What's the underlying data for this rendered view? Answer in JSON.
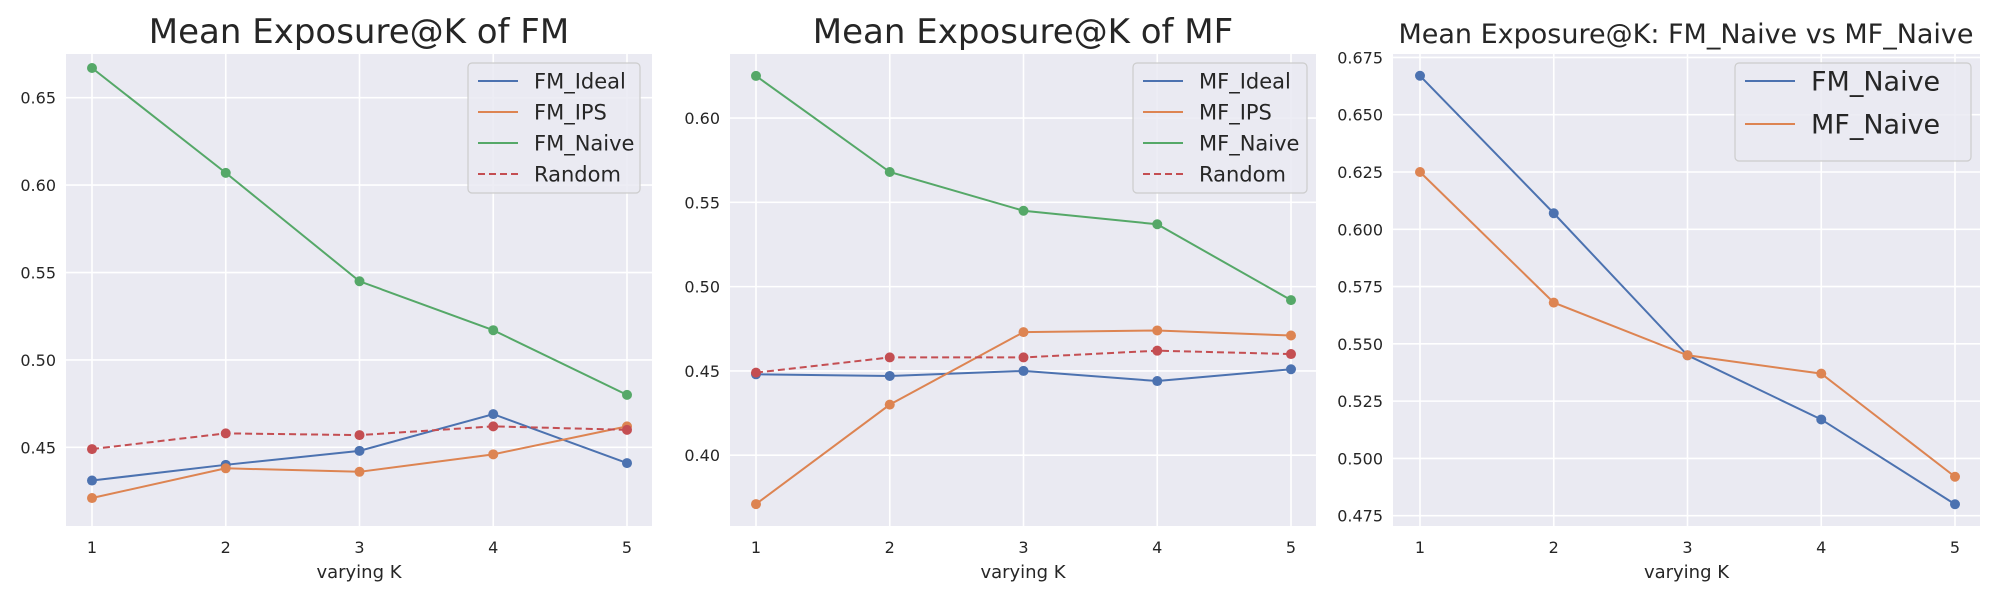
{
  "chart_data": [
    {
      "type": "line",
      "title": "Mean Exposure@K of FM",
      "xlabel": "varying K",
      "ylabel": "",
      "x": [
        1,
        2,
        3,
        4,
        5
      ],
      "xticks": [
        "1",
        "2",
        "3",
        "4",
        "5"
      ],
      "ylim": [
        0.405,
        0.675
      ],
      "yticks": [
        "0.45",
        "0.50",
        "0.55",
        "0.60",
        "0.65"
      ],
      "ytick_values": [
        0.45,
        0.5,
        0.55,
        0.6,
        0.65
      ],
      "grid": true,
      "legend": "top-right",
      "series": [
        {
          "name": "FM_Ideal",
          "color": "#4c72b0",
          "dashed": false,
          "values": [
            0.431,
            0.44,
            0.448,
            0.469,
            0.441
          ]
        },
        {
          "name": "FM_IPS",
          "color": "#dd8452",
          "dashed": false,
          "values": [
            0.421,
            0.438,
            0.436,
            0.446,
            0.462
          ]
        },
        {
          "name": "FM_Naive",
          "color": "#55a868",
          "dashed": false,
          "values": [
            0.667,
            0.607,
            0.545,
            0.517,
            0.48
          ]
        },
        {
          "name": "Random",
          "color": "#c44e52",
          "dashed": true,
          "values": [
            0.449,
            0.458,
            0.457,
            0.462,
            0.46
          ]
        }
      ]
    },
    {
      "type": "line",
      "title": "Mean Exposure@K of MF",
      "xlabel": "varying K",
      "ylabel": "",
      "x": [
        1,
        2,
        3,
        4,
        5
      ],
      "xticks": [
        "1",
        "2",
        "3",
        "4",
        "5"
      ],
      "ylim": [
        0.358,
        0.638
      ],
      "yticks": [
        "0.40",
        "0.45",
        "0.50",
        "0.55",
        "0.60"
      ],
      "ytick_values": [
        0.4,
        0.45,
        0.5,
        0.55,
        0.6
      ],
      "grid": true,
      "legend": "top-right",
      "series": [
        {
          "name": "MF_Ideal",
          "color": "#4c72b0",
          "dashed": false,
          "values": [
            0.448,
            0.447,
            0.45,
            0.444,
            0.451
          ]
        },
        {
          "name": "MF_IPS",
          "color": "#dd8452",
          "dashed": false,
          "values": [
            0.371,
            0.43,
            0.473,
            0.474,
            0.471
          ]
        },
        {
          "name": "MF_Naive",
          "color": "#55a868",
          "dashed": false,
          "values": [
            0.625,
            0.568,
            0.545,
            0.537,
            0.492
          ]
        },
        {
          "name": "Random",
          "color": "#c44e52",
          "dashed": true,
          "values": [
            0.449,
            0.458,
            0.458,
            0.462,
            0.46
          ]
        }
      ]
    },
    {
      "type": "line",
      "title": "Mean Exposure@K: FM_Naive vs MF_Naive",
      "xlabel": "varying K",
      "ylabel": "",
      "x": [
        1,
        2,
        3,
        4,
        5
      ],
      "xticks": [
        "1",
        "2",
        "3",
        "4",
        "5"
      ],
      "ylim": [
        0.4705,
        0.6765
      ],
      "yticks": [
        "0.475",
        "0.500",
        "0.525",
        "0.550",
        "0.575",
        "0.600",
        "0.625",
        "0.650",
        "0.675"
      ],
      "ytick_values": [
        0.475,
        0.5,
        0.525,
        0.55,
        0.575,
        0.6,
        0.625,
        0.65,
        0.675
      ],
      "grid": true,
      "legend": "top-right",
      "series": [
        {
          "name": "FM_Naive",
          "color": "#4c72b0",
          "dashed": false,
          "values": [
            0.667,
            0.607,
            0.545,
            0.517,
            0.48
          ]
        },
        {
          "name": "MF_Naive",
          "color": "#dd8452",
          "dashed": false,
          "values": [
            0.625,
            0.568,
            0.545,
            0.537,
            0.492
          ]
        }
      ]
    }
  ]
}
